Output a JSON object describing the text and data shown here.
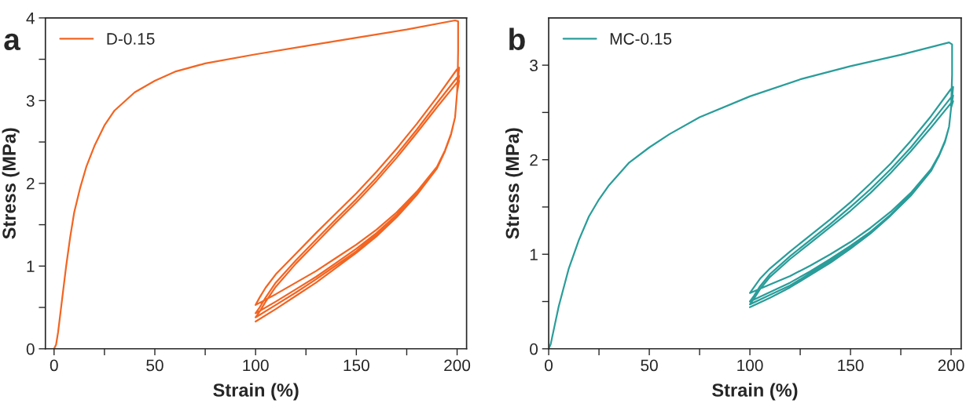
{
  "chart_data": [
    {
      "type": "line",
      "title": "a",
      "xlabel": "Strain (%)",
      "ylabel": "Stress (MPa)",
      "xlim": [
        -4.3,
        204.7
      ],
      "ylim": [
        0,
        4
      ],
      "xticks": [
        0,
        {
          "value": 25,
          "label": null
        },
        50,
        {
          "value": 75,
          "label": null
        },
        100,
        {
          "value": 125,
          "label": null
        },
        150,
        {
          "value": 175,
          "label": null
        },
        200
      ],
      "yticks": [
        0,
        {
          "value": 0.5,
          "label": null
        },
        1,
        {
          "value": 1.5,
          "label": null
        },
        2,
        {
          "value": 2.5,
          "label": null
        },
        3,
        {
          "value": 3.5,
          "label": null
        },
        4
      ],
      "legend": "top left",
      "grid": false,
      "series": [
        {
          "name": "D-0.15",
          "color": "#f26522",
          "x": [
            0,
            1,
            2,
            4,
            6,
            8,
            10,
            13,
            16,
            20,
            25,
            30,
            40,
            50,
            60,
            75,
            100,
            125,
            150,
            175,
            199,
            200.5,
            200.5,
            200.3,
            200,
            199,
            197,
            194,
            190,
            180,
            170,
            160,
            150,
            140,
            130,
            120,
            110,
            100,
            102,
            105,
            110,
            120,
            130,
            140,
            150,
            160,
            170,
            180,
            190,
            200,
            201,
            200,
            199,
            197,
            194,
            190,
            180,
            170,
            160,
            150,
            140,
            130,
            120,
            110,
            100,
            102,
            105,
            110,
            120,
            130,
            140,
            150,
            160,
            170,
            180,
            190,
            200,
            201,
            200,
            199,
            197,
            194,
            190,
            180,
            170,
            160,
            150,
            140,
            130,
            120,
            110,
            100,
            102,
            105,
            110,
            120,
            130,
            140,
            150,
            160,
            170,
            180,
            190,
            200,
            201,
            200,
            199,
            197,
            194,
            190,
            180,
            170,
            160,
            150,
            140,
            130,
            120,
            110,
            100
          ],
          "values": [
            0,
            0.05,
            0.2,
            0.6,
            1.0,
            1.35,
            1.65,
            1.95,
            2.2,
            2.45,
            2.7,
            2.88,
            3.1,
            3.24,
            3.35,
            3.45,
            3.56,
            3.66,
            3.76,
            3.86,
            3.97,
            3.96,
            3.6,
            3.3,
            3.1,
            2.8,
            2.6,
            2.4,
            2.2,
            1.9,
            1.65,
            1.44,
            1.26,
            1.1,
            0.94,
            0.8,
            0.66,
            0.53,
            0.62,
            0.74,
            0.9,
            1.15,
            1.4,
            1.64,
            1.88,
            2.14,
            2.42,
            2.72,
            3.04,
            3.38,
            3.4,
            3.1,
            2.8,
            2.6,
            2.39,
            2.19,
            1.88,
            1.62,
            1.4,
            1.21,
            1.04,
            0.87,
            0.72,
            0.57,
            0.43,
            0.5,
            0.62,
            0.8,
            1.07,
            1.32,
            1.57,
            1.81,
            2.07,
            2.35,
            2.65,
            2.97,
            3.28,
            3.3,
            3.1,
            2.8,
            2.6,
            2.39,
            2.19,
            1.87,
            1.6,
            1.38,
            1.18,
            1.01,
            0.84,
            0.68,
            0.53,
            0.38,
            0.45,
            0.57,
            0.75,
            1.03,
            1.28,
            1.53,
            1.77,
            2.03,
            2.31,
            2.61,
            2.92,
            3.22,
            3.24,
            3.1,
            2.8,
            2.59,
            2.39,
            2.18,
            1.86,
            1.59,
            1.36,
            1.16,
            0.98,
            0.8,
            0.64,
            0.48,
            0.33
          ]
        }
      ]
    },
    {
      "type": "line",
      "title": "b",
      "xlabel": "Strain (%)",
      "ylabel": "Stress (MPa)",
      "xlim": [
        0,
        205
      ],
      "ylim": [
        0,
        3.5
      ],
      "xticks": [
        0,
        {
          "value": 25,
          "label": null
        },
        50,
        {
          "value": 75,
          "label": null
        },
        100,
        {
          "value": 125,
          "label": null
        },
        150,
        {
          "value": 175,
          "label": null
        },
        200
      ],
      "yticks": [
        0,
        {
          "value": 0.5,
          "label": null
        },
        1,
        {
          "value": 1.5,
          "label": null
        },
        2,
        {
          "value": 2.5,
          "label": null
        },
        3
      ],
      "legend": "top left",
      "grid": false,
      "series": [
        {
          "name": "MC-0.15",
          "color": "#2a9d9a",
          "x": [
            0,
            1,
            3,
            5,
            10,
            15,
            20,
            25,
            30,
            40,
            50,
            60,
            75,
            100,
            125,
            150,
            175,
            199,
            200.5,
            200.5,
            200,
            199,
            197,
            194,
            190,
            180,
            170,
            160,
            150,
            140,
            130,
            120,
            110,
            100,
            102,
            105,
            110,
            120,
            130,
            140,
            150,
            160,
            170,
            180,
            190,
            200,
            201,
            200,
            199,
            197,
            194,
            190,
            180,
            170,
            160,
            150,
            140,
            130,
            120,
            110,
            100,
            102,
            105,
            110,
            120,
            130,
            140,
            150,
            160,
            170,
            180,
            190,
            200,
            201,
            200,
            199,
            197,
            194,
            190,
            180,
            170,
            160,
            150,
            140,
            130,
            120,
            110,
            100,
            102,
            105,
            110,
            120,
            130,
            140,
            150,
            160,
            170,
            180,
            190,
            200,
            201,
            200,
            199,
            197,
            194,
            190,
            180,
            170,
            160,
            150,
            140,
            130,
            120,
            110,
            100
          ],
          "values": [
            0,
            0.05,
            0.25,
            0.45,
            0.85,
            1.15,
            1.4,
            1.58,
            1.73,
            1.97,
            2.13,
            2.27,
            2.45,
            2.67,
            2.85,
            2.99,
            3.11,
            3.24,
            3.22,
            2.9,
            2.55,
            2.35,
            2.2,
            2.05,
            1.9,
            1.65,
            1.45,
            1.28,
            1.13,
            1.0,
            0.88,
            0.77,
            0.68,
            0.59,
            0.65,
            0.74,
            0.85,
            1.03,
            1.2,
            1.37,
            1.55,
            1.75,
            1.96,
            2.2,
            2.46,
            2.75,
            2.77,
            2.55,
            2.35,
            2.2,
            2.04,
            1.89,
            1.63,
            1.42,
            1.24,
            1.09,
            0.95,
            0.82,
            0.7,
            0.6,
            0.5,
            0.56,
            0.66,
            0.79,
            0.98,
            1.15,
            1.32,
            1.5,
            1.69,
            1.9,
            2.13,
            2.39,
            2.66,
            2.68,
            2.55,
            2.35,
            2.2,
            2.04,
            1.89,
            1.63,
            1.41,
            1.23,
            1.07,
            0.93,
            0.8,
            0.67,
            0.57,
            0.47,
            0.53,
            0.63,
            0.76,
            0.95,
            1.12,
            1.29,
            1.46,
            1.65,
            1.86,
            2.09,
            2.34,
            2.6,
            2.62,
            2.55,
            2.35,
            2.19,
            2.04,
            1.88,
            1.62,
            1.41,
            1.22,
            1.06,
            0.91,
            0.78,
            0.65,
            0.54,
            0.44
          ]
        }
      ]
    }
  ]
}
